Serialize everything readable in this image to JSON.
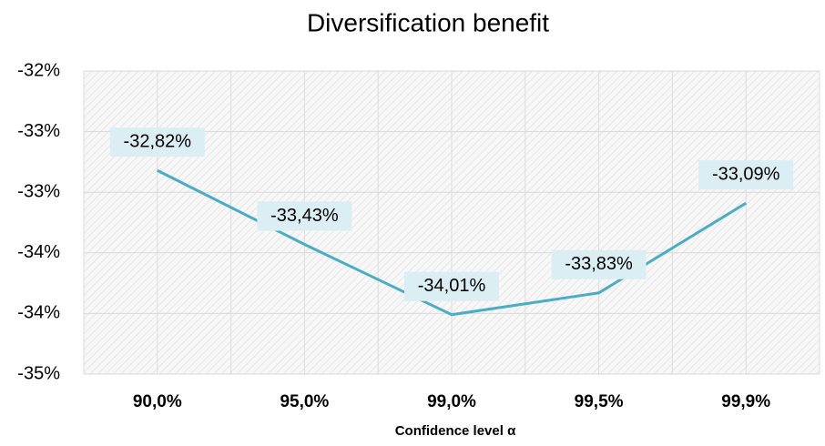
{
  "chart_data": {
    "type": "line",
    "title": "Diversification benefit",
    "x_label": "Confidence level α",
    "categories": [
      "90,0%",
      "95,0%",
      "99,0%",
      "99,5%",
      "99,9%"
    ],
    "series": [
      {
        "name": null,
        "color": "#4bacc6",
        "values": [
          -32.82,
          -33.43,
          -34.01,
          -33.83,
          -33.09
        ],
        "value_labels": [
          "-32,82%",
          "-33,43%",
          "-34,01%",
          "-33,83%",
          "-33,09%"
        ]
      }
    ],
    "ylim": [
      -34.5,
      -32
    ],
    "yticks": [
      {
        "value": -32,
        "label": "-32%"
      },
      {
        "value": -32.5,
        "label": "-33%"
      },
      {
        "value": -33,
        "label": "-33%"
      },
      {
        "value": -33.5,
        "label": "-34%"
      },
      {
        "value": -34,
        "label": "-34%"
      },
      {
        "value": -34.5,
        "label": "-35%"
      }
    ],
    "grid": true
  }
}
